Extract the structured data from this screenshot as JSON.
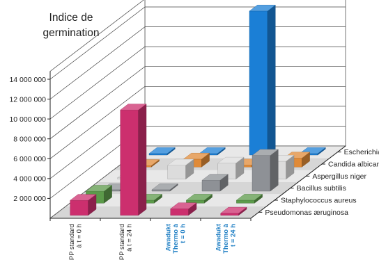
{
  "chart_data": {
    "type": "bar3d",
    "title": "",
    "ylabel": "Indice de\ngermination",
    "ylim": [
      0,
      14000000
    ],
    "y_ticks": [
      "2 000 000",
      "4 000 000",
      "6 000 000",
      "8 000 000",
      "10 000 000",
      "12 000 000",
      "14 000 000"
    ],
    "grid": true,
    "legend_position": "right, along depth axis",
    "categories": [
      "PP standard\nà t = 0 h",
      "PP standard\nà t = 24 h",
      "Awadukt\nThermo à\nt = 0 h",
      "Awadukt\nThermo à\nt = 24 h"
    ],
    "category_colors": [
      "#222222",
      "#222222",
      "#1f7fc4",
      "#1f7fc4"
    ],
    "series": [
      {
        "name": "Pseudomonas æruginosa",
        "color": "#cc2f6e",
        "values": [
          1500000,
          10600000,
          650000,
          200000
        ]
      },
      {
        "name": "Staphylococcus aureus",
        "color": "#5c9a4a",
        "values": [
          1200000,
          300000,
          300000,
          300000
        ]
      },
      {
        "name": "Bacillus subtilis",
        "color": "#8e9196",
        "values": [
          150000,
          150000,
          1100000,
          3600000
        ]
      },
      {
        "name": "Aspergillus niger",
        "color": "#dcdcdc",
        "values": [
          150000,
          1400000,
          1600000,
          1800000
        ]
      },
      {
        "name": "Candida albicans",
        "color": "#e08a37",
        "values": [
          150000,
          800000,
          200000,
          900000
        ]
      },
      {
        "name": "Escherichia coli",
        "color": "#1b7fd6",
        "values": [
          150000,
          150000,
          14500000,
          150000
        ]
      }
    ]
  }
}
